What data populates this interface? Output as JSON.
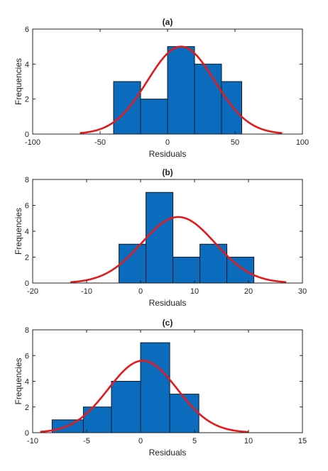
{
  "colors": {
    "bar_fill": "#0b6cbd",
    "bar_edge": "#0a1a2a",
    "curve": "#e31a1c",
    "axis": "#222222"
  },
  "chart_data": [
    {
      "type": "bar",
      "subtype": "histogram_with_normal_fit",
      "title": "(a)",
      "xlabel": "Residuals",
      "ylabel": "Frequencies",
      "xlim": [
        -100,
        100
      ],
      "ylim": [
        0,
        6
      ],
      "xticks": [
        -100,
        -50,
        0,
        50,
        100
      ],
      "yticks": [
        0,
        2,
        4,
        6
      ],
      "bin_edges": [
        -40,
        -20,
        0,
        20,
        40,
        55
      ],
      "values": [
        3,
        2,
        5,
        4,
        3
      ],
      "fit": {
        "mu": 10,
        "sigma": 25,
        "peak": 5,
        "x_range": [
          -65,
          85
        ]
      }
    },
    {
      "type": "bar",
      "subtype": "histogram_with_normal_fit",
      "title": "(b)",
      "xlabel": "Residuals",
      "ylabel": "Frequencies",
      "xlim": [
        -20,
        30
      ],
      "ylim": [
        0,
        8
      ],
      "xticks": [
        -20,
        -10,
        0,
        10,
        20,
        30
      ],
      "yticks": [
        0,
        2,
        4,
        6,
        8
      ],
      "bin_edges": [
        -4,
        1,
        6,
        11,
        16,
        21
      ],
      "values": [
        3,
        7,
        2,
        3,
        2
      ],
      "fit": {
        "mu": 7,
        "sigma": 6.8,
        "peak": 5.1,
        "x_range": [
          -13,
          27
        ]
      }
    },
    {
      "type": "bar",
      "subtype": "histogram_with_normal_fit",
      "title": "(c)",
      "xlabel": "Residuals",
      "ylabel": "Frequencies",
      "xlim": [
        -10,
        15
      ],
      "ylim": [
        0,
        8
      ],
      "xticks": [
        -10,
        -5,
        0,
        5,
        10,
        15
      ],
      "yticks": [
        0,
        2,
        4,
        6,
        8
      ],
      "bin_edges": [
        -8.2,
        -5.3,
        -2.7,
        0,
        2.7,
        5.4
      ],
      "values": [
        1,
        2,
        4,
        7,
        3
      ],
      "fit": {
        "mu": 0.2,
        "sigma": 3.2,
        "peak": 5.6,
        "x_range": [
          -9.3,
          10
        ]
      }
    }
  ]
}
